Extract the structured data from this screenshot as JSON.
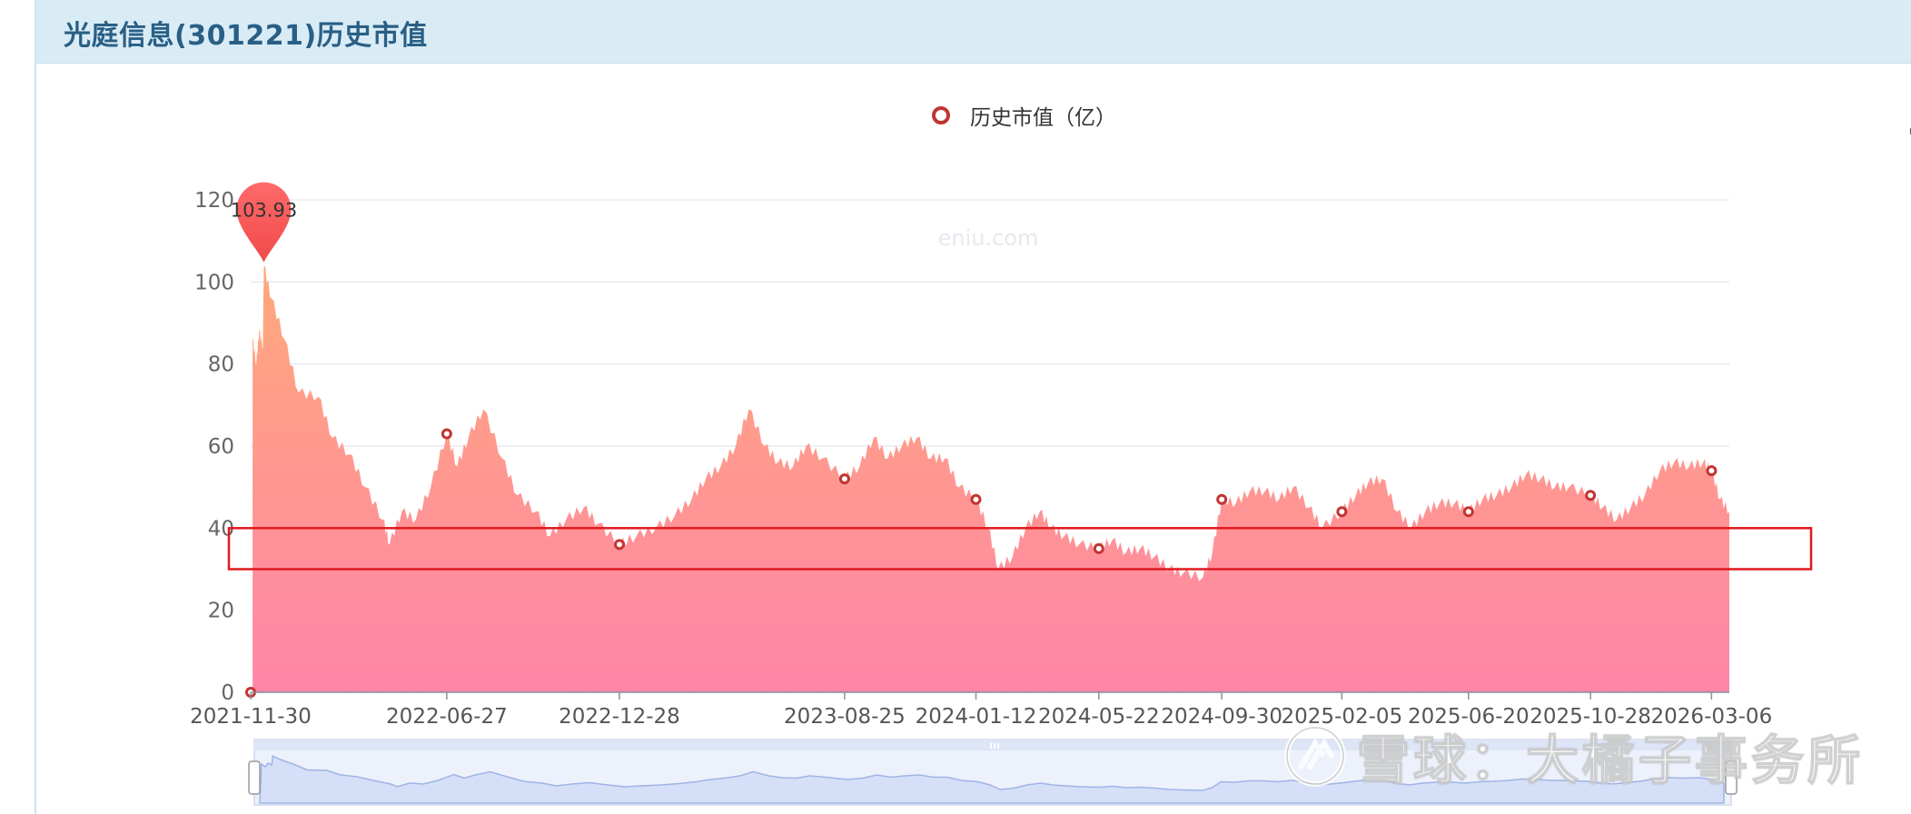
{
  "page": {
    "title": "光庭信息(301221)历史市值",
    "legend_label": "历史市值（亿）",
    "watermark_site": "eniu.com",
    "watermark_brand": "雪球：大橘子事务所"
  },
  "icons": {
    "download": "download-icon",
    "watermark_logo": "xueqiu-logo-icon"
  },
  "colors": {
    "series": "#c23531",
    "area_top": "#ffa97a",
    "area_bottom": "#ff85a8",
    "highlight_box": "#e0191f"
  },
  "chart_data": {
    "type": "area",
    "title": "",
    "xlabel": "",
    "ylabel": "",
    "ylim": [
      0,
      120
    ],
    "y_ticks": [
      0,
      20,
      40,
      60,
      80,
      100,
      120
    ],
    "x_tick_labels": [
      "2021-11-30",
      "2022-06-27",
      "2022-12-28",
      "2023-08-25",
      "2024-01-12",
      "2024-05-22",
      "2024-09-30",
      "2025-02-05",
      "2025-06-20",
      "2025-10-28",
      "2026-03-06"
    ],
    "legend_position": "top-center",
    "grid": true,
    "max_marker": {
      "date": "2021-12-14",
      "value": 103.93,
      "label": "103.93"
    },
    "highlight_range": [
      30,
      40
    ],
    "series": [
      {
        "name": "历史市值（亿）",
        "points": [
          [
            "2021-11-30",
            0
          ],
          [
            "2021-12-02",
            86
          ],
          [
            "2021-12-06",
            80
          ],
          [
            "2021-12-09",
            88
          ],
          [
            "2021-12-13",
            84
          ],
          [
            "2021-12-14",
            103.93
          ],
          [
            "2021-12-22",
            96
          ],
          [
            "2022-01-05",
            86
          ],
          [
            "2022-01-20",
            73
          ],
          [
            "2022-02-10",
            72
          ],
          [
            "2022-02-25",
            62
          ],
          [
            "2022-03-15",
            58
          ],
          [
            "2022-04-01",
            50
          ],
          [
            "2022-04-20",
            42
          ],
          [
            "2022-04-27",
            36
          ],
          [
            "2022-05-10",
            44
          ],
          [
            "2022-05-25",
            42
          ],
          [
            "2022-06-10",
            50
          ],
          [
            "2022-06-27",
            63
          ],
          [
            "2022-07-08",
            55
          ],
          [
            "2022-07-20",
            62
          ],
          [
            "2022-08-05",
            69
          ],
          [
            "2022-08-25",
            57
          ],
          [
            "2022-09-10",
            48
          ],
          [
            "2022-09-30",
            44
          ],
          [
            "2022-10-15",
            38
          ],
          [
            "2022-11-01",
            42
          ],
          [
            "2022-11-20",
            45
          ],
          [
            "2022-12-05",
            41
          ],
          [
            "2022-12-28",
            36
          ],
          [
            "2023-01-15",
            38
          ],
          [
            "2023-02-05",
            40
          ],
          [
            "2023-02-25",
            43
          ],
          [
            "2023-03-15",
            47
          ],
          [
            "2023-03-30",
            52
          ],
          [
            "2023-04-15",
            55
          ],
          [
            "2023-05-01",
            60
          ],
          [
            "2023-05-15",
            69
          ],
          [
            "2023-06-01",
            60
          ],
          [
            "2023-06-15",
            56
          ],
          [
            "2023-07-01",
            55
          ],
          [
            "2023-07-15",
            60
          ],
          [
            "2023-08-01",
            57
          ],
          [
            "2023-08-25",
            52
          ],
          [
            "2023-09-10",
            55
          ],
          [
            "2023-09-25",
            62
          ],
          [
            "2023-10-10",
            57
          ],
          [
            "2023-10-25",
            60
          ],
          [
            "2023-11-10",
            62
          ],
          [
            "2023-11-25",
            57
          ],
          [
            "2023-12-10",
            57
          ],
          [
            "2023-12-25",
            50
          ],
          [
            "2024-01-12",
            47
          ],
          [
            "2024-01-25",
            40
          ],
          [
            "2024-02-05",
            30
          ],
          [
            "2024-02-20",
            33
          ],
          [
            "2024-03-05",
            40
          ],
          [
            "2024-03-20",
            44
          ],
          [
            "2024-04-01",
            40
          ],
          [
            "2024-04-15",
            38
          ],
          [
            "2024-05-01",
            36
          ],
          [
            "2024-05-22",
            35
          ],
          [
            "2024-06-05",
            37
          ],
          [
            "2024-06-20",
            34
          ],
          [
            "2024-07-05",
            35
          ],
          [
            "2024-07-20",
            33
          ],
          [
            "2024-08-05",
            30
          ],
          [
            "2024-08-20",
            29
          ],
          [
            "2024-09-10",
            28
          ],
          [
            "2024-09-20",
            34
          ],
          [
            "2024-09-30",
            47
          ],
          [
            "2024-10-15",
            46
          ],
          [
            "2024-10-30",
            49
          ],
          [
            "2024-11-15",
            49
          ],
          [
            "2024-11-30",
            47
          ],
          [
            "2024-12-15",
            50
          ],
          [
            "2025-01-01",
            45
          ],
          [
            "2025-01-15",
            40
          ],
          [
            "2025-02-05",
            44
          ],
          [
            "2025-02-20",
            48
          ],
          [
            "2025-03-05",
            51
          ],
          [
            "2025-03-20",
            52
          ],
          [
            "2025-04-05",
            44
          ],
          [
            "2025-04-20",
            40
          ],
          [
            "2025-05-05",
            44
          ],
          [
            "2025-05-20",
            46
          ],
          [
            "2025-06-05",
            46
          ],
          [
            "2025-06-20",
            44
          ],
          [
            "2025-07-05",
            47
          ],
          [
            "2025-07-20",
            48
          ],
          [
            "2025-08-05",
            50
          ],
          [
            "2025-08-20",
            53
          ],
          [
            "2025-09-05",
            52
          ],
          [
            "2025-09-20",
            50
          ],
          [
            "2025-10-05",
            50
          ],
          [
            "2025-10-28",
            48
          ],
          [
            "2025-11-10",
            45
          ],
          [
            "2025-11-25",
            42
          ],
          [
            "2025-12-10",
            45
          ],
          [
            "2025-12-25",
            48
          ],
          [
            "2026-01-10",
            54
          ],
          [
            "2026-01-25",
            56
          ],
          [
            "2026-02-10",
            55
          ],
          [
            "2026-02-25",
            56
          ],
          [
            "2026-03-06",
            54
          ],
          [
            "2026-03-15",
            47
          ],
          [
            "2026-03-25",
            44
          ]
        ]
      }
    ],
    "markers": [
      [
        "2021-11-30",
        0
      ],
      [
        "2022-06-27",
        63
      ],
      [
        "2022-12-28",
        36
      ],
      [
        "2023-08-25",
        52
      ],
      [
        "2024-01-12",
        47
      ],
      [
        "2024-05-22",
        35
      ],
      [
        "2024-09-30",
        47
      ],
      [
        "2025-02-05",
        44
      ],
      [
        "2025-06-20",
        44
      ],
      [
        "2025-10-28",
        48
      ],
      [
        "2026-03-06",
        54
      ]
    ]
  }
}
